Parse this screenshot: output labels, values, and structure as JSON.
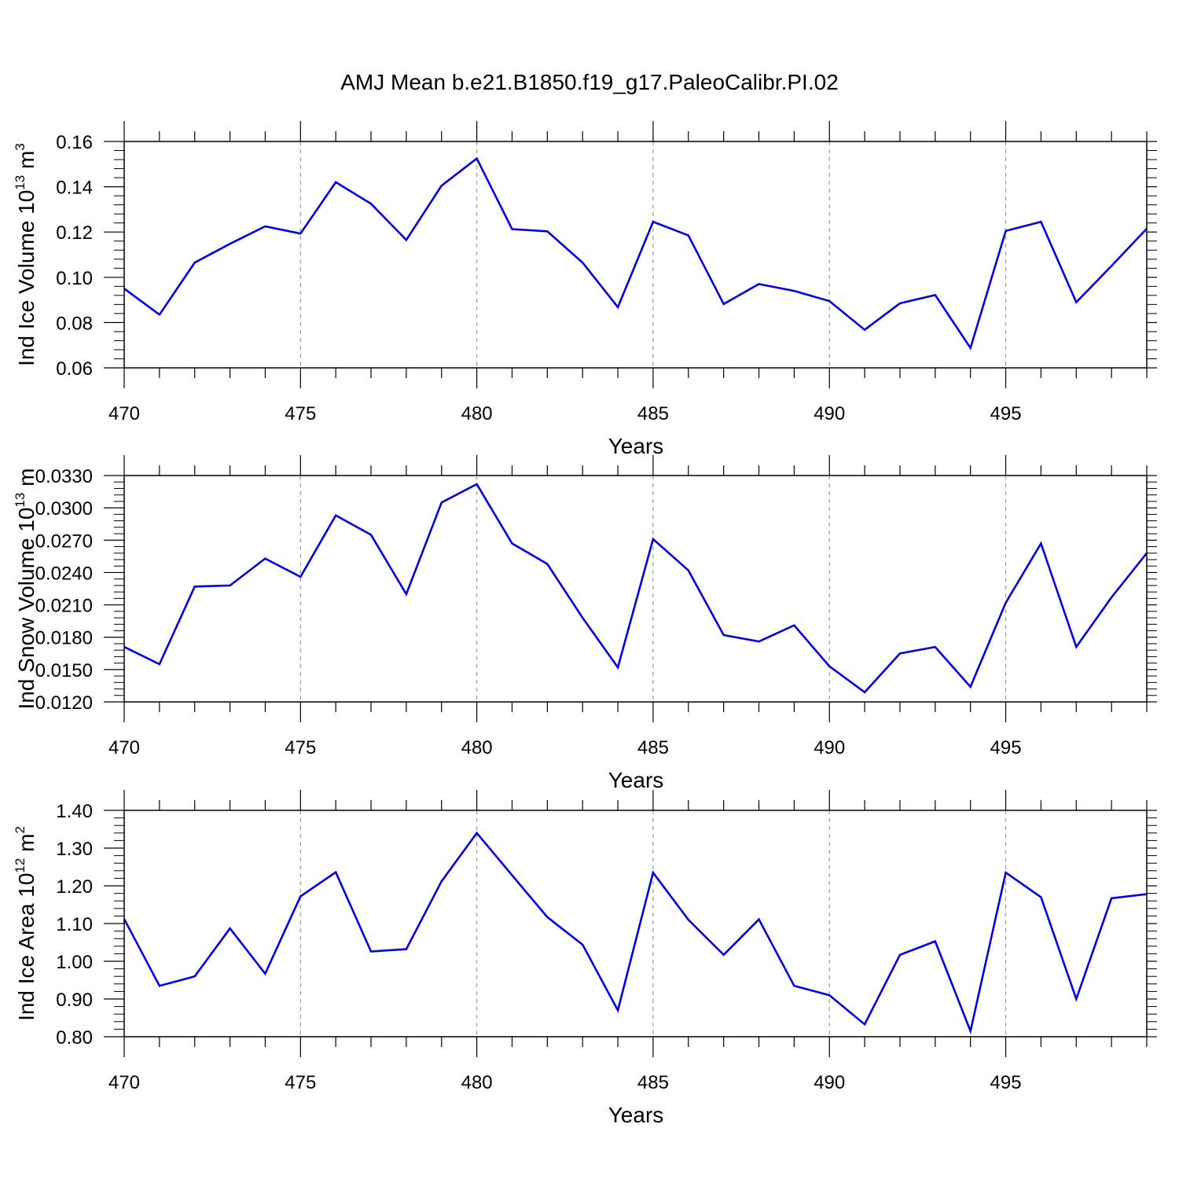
{
  "title": "AMJ Mean b.e21.B1850.f19_g17.PaleoCalibr.PI.02",
  "chart_data": [
    {
      "type": "line",
      "ylabel": "Ind Ice Volume 10",
      "ylabel_exp": "13",
      "ylabel_unit": " m",
      "ylabel_unit_exp": "3",
      "xlabel": "Years",
      "xlim": [
        470,
        499
      ],
      "ylim": [
        0.06,
        0.16
      ],
      "xticks": [
        "470",
        "475",
        "480",
        "485",
        "490",
        "495"
      ],
      "yticks": [
        "0.06",
        "0.08",
        "0.10",
        "0.12",
        "0.14",
        "0.16"
      ],
      "grid": "vertical dashed at major x ticks",
      "line_color": "#0000ee",
      "x": [
        470,
        471,
        472,
        473,
        474,
        475,
        476,
        477,
        478,
        479,
        480,
        481,
        482,
        483,
        484,
        485,
        486,
        487,
        488,
        489,
        490,
        491,
        492,
        493,
        494,
        495,
        496,
        497,
        498,
        499
      ],
      "y": [
        0.095,
        0.0835,
        0.1065,
        0.1148,
        0.1225,
        0.1193,
        0.142,
        0.1325,
        0.1165,
        0.1405,
        0.1525,
        0.1213,
        0.1203,
        0.1065,
        0.0868,
        0.1245,
        0.1185,
        0.0882,
        0.097,
        0.094,
        0.0895,
        0.0768,
        0.0885,
        0.0922,
        0.0688,
        0.1205,
        0.1245,
        0.089,
        0.105,
        0.1215
      ]
    },
    {
      "type": "line",
      "ylabel": "Ind Snow Volume 10",
      "ylabel_exp": "13",
      "ylabel_unit": " m",
      "ylabel_unit_exp": "",
      "xlabel": "Years",
      "xlim": [
        470,
        499
      ],
      "ylim": [
        0.012,
        0.033
      ],
      "xticks": [
        "470",
        "475",
        "480",
        "485",
        "490",
        "495"
      ],
      "yticks": [
        "0.0120",
        "0.0150",
        "0.0180",
        "0.0210",
        "0.0240",
        "0.0270",
        "0.0300",
        "0.0330"
      ],
      "grid": "vertical dashed at major x ticks",
      "line_color": "#0000ee",
      "x": [
        470,
        471,
        472,
        473,
        474,
        475,
        476,
        477,
        478,
        479,
        480,
        481,
        482,
        483,
        484,
        485,
        486,
        487,
        488,
        489,
        490,
        491,
        492,
        493,
        494,
        495,
        496,
        497,
        498,
        499
      ],
      "y": [
        0.0171,
        0.0155,
        0.0227,
        0.0228,
        0.0253,
        0.0236,
        0.0293,
        0.0275,
        0.022,
        0.0305,
        0.0322,
        0.0267,
        0.0248,
        0.0198,
        0.0152,
        0.0271,
        0.0242,
        0.0182,
        0.0176,
        0.0191,
        0.0153,
        0.0129,
        0.0165,
        0.0171,
        0.0134,
        0.0212,
        0.0267,
        0.0171,
        0.0217,
        0.0258
      ]
    },
    {
      "type": "line",
      "ylabel": "Ind Ice Area 10",
      "ylabel_exp": "12",
      "ylabel_unit": " m",
      "ylabel_unit_exp": "2",
      "xlabel": "Years",
      "xlim": [
        470,
        499
      ],
      "ylim": [
        0.8,
        1.4
      ],
      "xticks": [
        "470",
        "475",
        "480",
        "485",
        "490",
        "495"
      ],
      "yticks": [
        "0.80",
        "0.90",
        "1.00",
        "1.10",
        "1.20",
        "1.30",
        "1.40"
      ],
      "grid": "vertical dashed at major x ticks",
      "line_color": "#0000ee",
      "x": [
        470,
        471,
        472,
        473,
        474,
        475,
        476,
        477,
        478,
        479,
        480,
        481,
        482,
        483,
        484,
        485,
        486,
        487,
        488,
        489,
        490,
        491,
        492,
        493,
        494,
        495,
        496,
        497,
        498,
        499
      ],
      "y": [
        1.112,
        0.935,
        0.96,
        1.087,
        0.967,
        1.172,
        1.236,
        1.026,
        1.032,
        1.212,
        1.34,
        1.228,
        1.117,
        1.044,
        0.87,
        1.235,
        1.11,
        1.017,
        1.111,
        0.935,
        0.91,
        0.833,
        1.017,
        1.053,
        0.815,
        1.235,
        1.17,
        0.9,
        1.167,
        1.178
      ]
    }
  ]
}
